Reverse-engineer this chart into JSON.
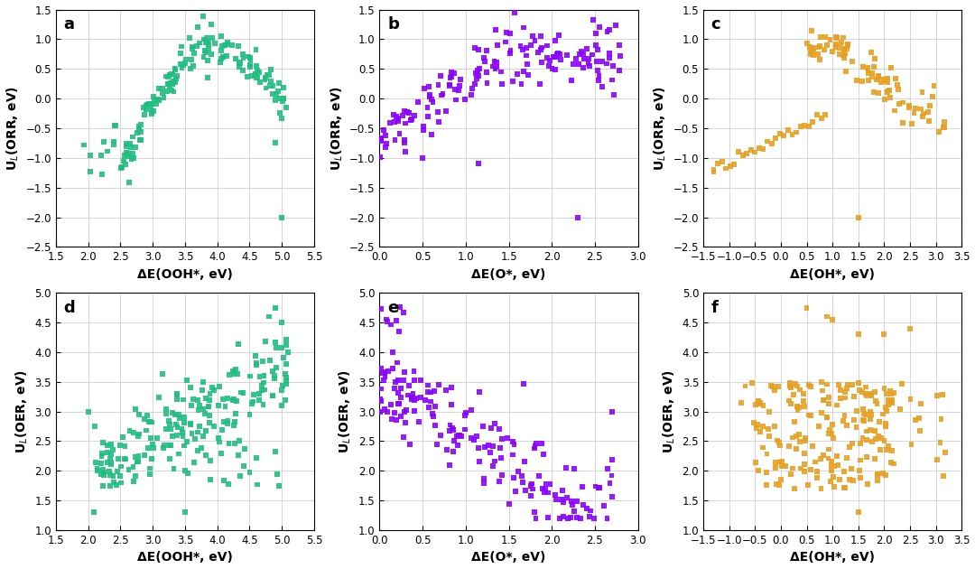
{
  "panel_a": {
    "label": "a",
    "color": "#1fbe7e",
    "xlabel": "ΔE(OOH*, eV)",
    "ylabel": "U$_L$(ORR, eV)",
    "xlim": [
      1.5,
      5.5
    ],
    "ylim": [
      -2.5,
      1.5
    ],
    "xticks": [
      1.5,
      2.0,
      2.5,
      3.0,
      3.5,
      4.0,
      4.5,
      5.0,
      5.5
    ],
    "yticks": [
      -2.5,
      -2.0,
      -1.5,
      -1.0,
      -0.5,
      0.0,
      0.5,
      1.0,
      1.5
    ],
    "seed": 42
  },
  "panel_b": {
    "label": "b",
    "color": "#8b00ff",
    "xlabel": "ΔE(O*, eV)",
    "ylabel": "U$_L$(ORR, eV)",
    "xlim": [
      0.0,
      3.0
    ],
    "ylim": [
      -2.5,
      1.5
    ],
    "xticks": [
      0.0,
      0.5,
      1.0,
      1.5,
      2.0,
      2.5,
      3.0
    ],
    "yticks": [
      -2.5,
      -2.0,
      -1.5,
      -1.0,
      -0.5,
      0.0,
      0.5,
      1.0,
      1.5
    ],
    "seed": 43
  },
  "panel_c": {
    "label": "c",
    "color": "#e8a020",
    "xlabel": "ΔE(OH*, eV)",
    "ylabel": "U$_L$(ORR, eV)",
    "xlim": [
      -1.5,
      3.5
    ],
    "ylim": [
      -2.5,
      1.5
    ],
    "xticks": [
      -1.5,
      -1.0,
      -0.5,
      0.0,
      0.5,
      1.0,
      1.5,
      2.0,
      2.5,
      3.0,
      3.5
    ],
    "yticks": [
      -2.5,
      -2.0,
      -1.5,
      -1.0,
      -0.5,
      0.0,
      0.5,
      1.0,
      1.5
    ],
    "seed": 44
  },
  "panel_d": {
    "label": "d",
    "color": "#1fbe7e",
    "xlabel": "ΔE(OOH*, eV)",
    "ylabel": "U$_L$(OER, eV)",
    "xlim": [
      1.5,
      5.5
    ],
    "ylim": [
      1.0,
      5.0
    ],
    "xticks": [
      1.5,
      2.0,
      2.5,
      3.0,
      3.5,
      4.0,
      4.5,
      5.0,
      5.5
    ],
    "yticks": [
      1.0,
      1.5,
      2.0,
      2.5,
      3.0,
      3.5,
      4.0,
      4.5,
      5.0
    ],
    "seed": 45
  },
  "panel_e": {
    "label": "e",
    "color": "#8b00ff",
    "xlabel": "ΔE(O*, eV)",
    "ylabel": "U$_L$(OER, eV)",
    "xlim": [
      0.0,
      3.0
    ],
    "ylim": [
      1.0,
      5.0
    ],
    "xticks": [
      0.0,
      0.5,
      1.0,
      1.5,
      2.0,
      2.5,
      3.0
    ],
    "yticks": [
      1.0,
      1.5,
      2.0,
      2.5,
      3.0,
      3.5,
      4.0,
      4.5,
      5.0
    ],
    "seed": 46
  },
  "panel_f": {
    "label": "f",
    "color": "#e8a020",
    "xlabel": "ΔE(OH*, eV)",
    "ylabel": "U$_L$(OER, eV)",
    "xlim": [
      -1.5,
      3.5
    ],
    "ylim": [
      1.0,
      5.0
    ],
    "xticks": [
      -1.5,
      -1.0,
      -0.5,
      0.0,
      0.5,
      1.0,
      1.5,
      2.0,
      2.5,
      3.0,
      3.5
    ],
    "yticks": [
      1.0,
      1.5,
      2.0,
      2.5,
      3.0,
      3.5,
      4.0,
      4.5,
      5.0
    ],
    "seed": 47
  },
  "marker_size": 18,
  "marker_style": "s",
  "alpha": 0.9,
  "label_fontsize": 10,
  "tick_fontsize": 8.5,
  "panel_label_fontsize": 13
}
